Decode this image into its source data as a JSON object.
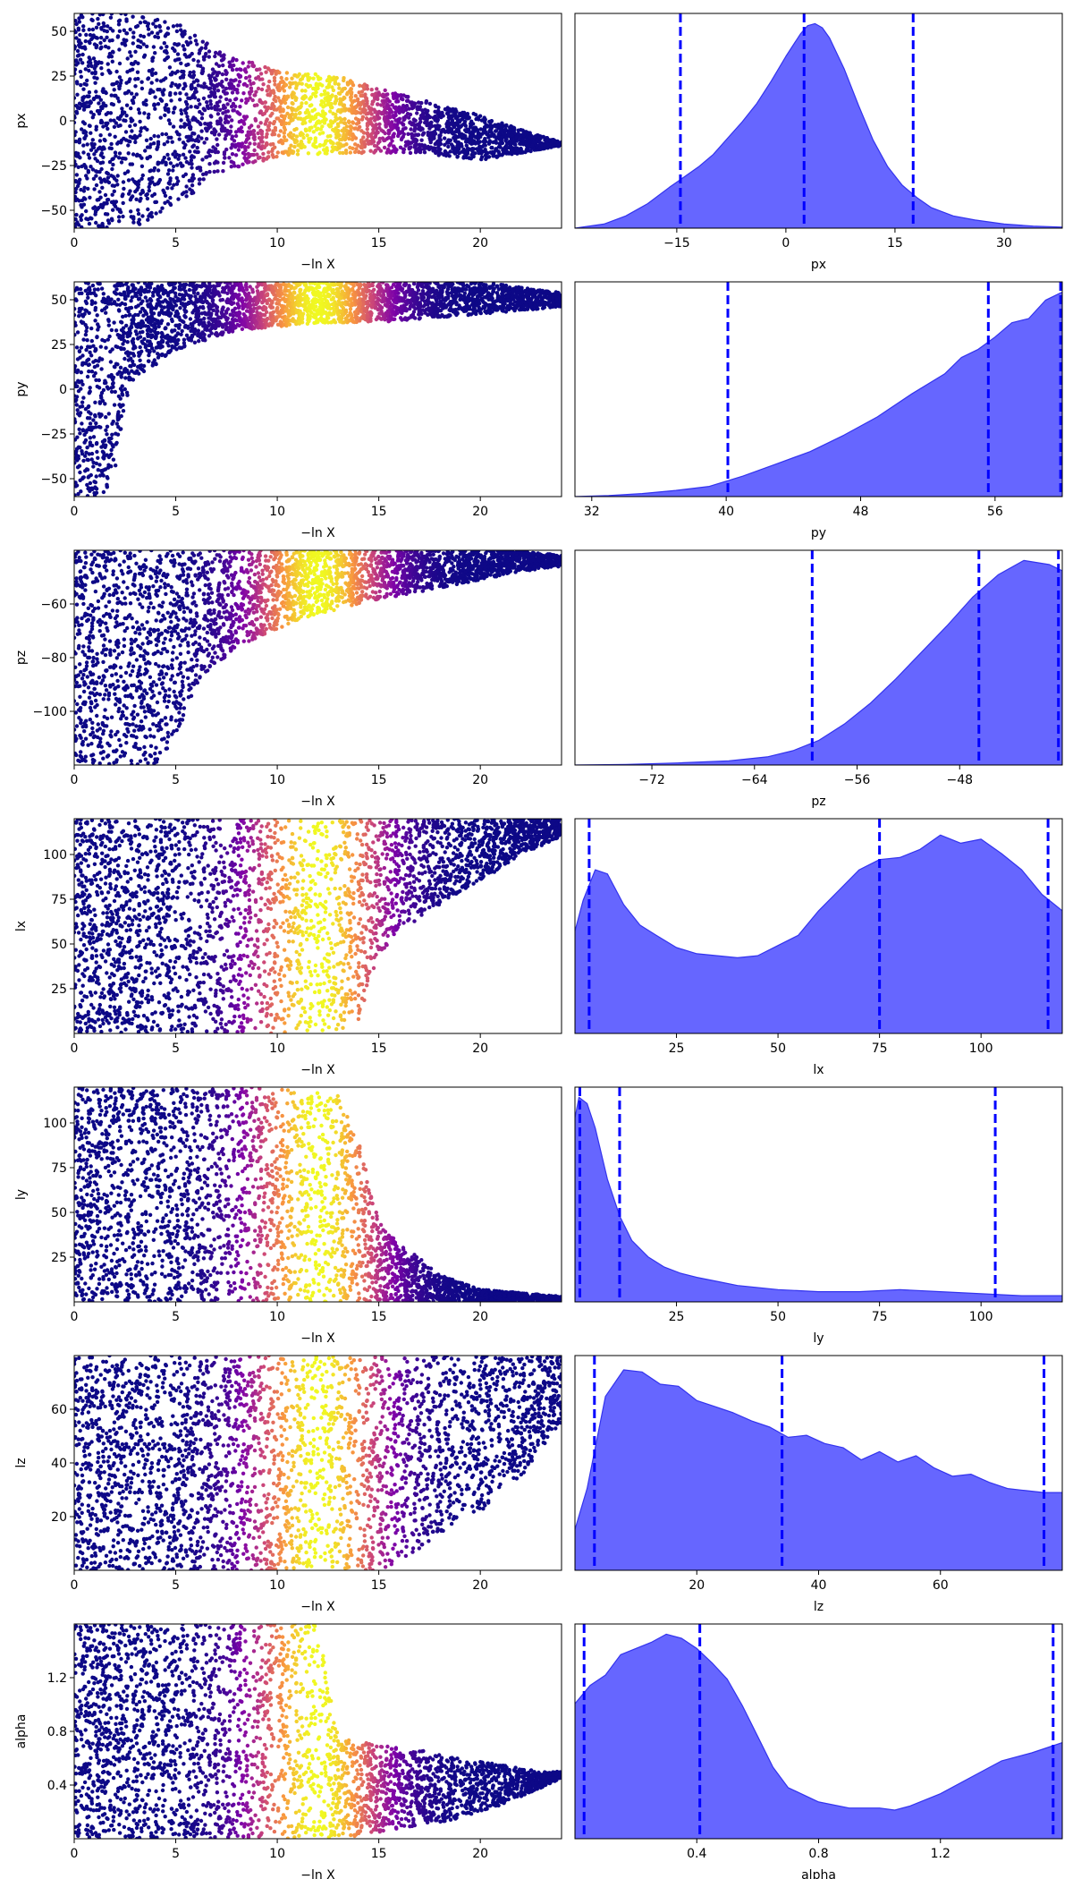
{
  "colors": {
    "kde_fill": "#6666ff",
    "kde_edge": "#3333ee",
    "quantile_line": "#0000ff",
    "scatter_low": "#0d0887",
    "scatter_high": "#f0f921"
  },
  "chart_data": [
    {
      "type": "scatter",
      "param": "px",
      "xlabel": "−ln X",
      "ylabel": "px",
      "xlim": [
        0,
        24
      ],
      "ylim": [
        -60,
        60
      ],
      "xticks": [
        0,
        5,
        10,
        15,
        20
      ],
      "yticks": [
        -50,
        -25,
        0,
        25,
        50
      ],
      "colormap": "plasma",
      "peak_x": 12,
      "envelope": [
        [
          0,
          -60,
          60
        ],
        [
          3,
          -60,
          60
        ],
        [
          5,
          -48,
          55
        ],
        [
          7,
          -30,
          40
        ],
        [
          10,
          -20,
          28
        ],
        [
          13,
          -18,
          25
        ],
        [
          17,
          -18,
          12
        ],
        [
          20,
          -22,
          3
        ],
        [
          22,
          -18,
          -5
        ],
        [
          24,
          -14,
          -12
        ]
      ]
    },
    {
      "type": "area",
      "param": "px",
      "xlabel": "px",
      "xlim": [
        -29,
        38
      ],
      "ylim": [
        0,
        1.05
      ],
      "xticks": [
        -15,
        0,
        15,
        30
      ],
      "quantiles": [
        -14.5,
        2.5,
        17.5
      ],
      "density_x": [
        -29,
        -25,
        -22,
        -19,
        -16,
        -14,
        -12,
        -10,
        -8,
        -6,
        -4,
        -2,
        0,
        2,
        3,
        4,
        5,
        6,
        8,
        10,
        12,
        14,
        16,
        18,
        20,
        23,
        26,
        30,
        34,
        38
      ],
      "density_y": [
        0,
        0.02,
        0.06,
        0.12,
        0.2,
        0.25,
        0.3,
        0.36,
        0.44,
        0.52,
        0.61,
        0.72,
        0.84,
        0.95,
        0.99,
        1.0,
        0.98,
        0.93,
        0.78,
        0.6,
        0.43,
        0.3,
        0.21,
        0.15,
        0.1,
        0.06,
        0.04,
        0.02,
        0.01,
        0.005
      ]
    },
    {
      "type": "scatter",
      "param": "py",
      "xlabel": "−ln X",
      "ylabel": "py",
      "xlim": [
        0,
        24
      ],
      "ylim": [
        -60,
        60
      ],
      "xticks": [
        0,
        5,
        10,
        15,
        20
      ],
      "yticks": [
        -50,
        -25,
        0,
        25,
        50
      ],
      "colormap": "plasma",
      "peak_x": 12,
      "envelope": [
        [
          0,
          -60,
          60
        ],
        [
          1.5,
          -60,
          60
        ],
        [
          2,
          -45,
          60
        ],
        [
          2.5,
          -10,
          60
        ],
        [
          3,
          5,
          60
        ],
        [
          5,
          22,
          60
        ],
        [
          8,
          33,
          60
        ],
        [
          12,
          37,
          60
        ],
        [
          16,
          38,
          60
        ],
        [
          20,
          42,
          60
        ],
        [
          22,
          44,
          57
        ],
        [
          24,
          46,
          54
        ]
      ]
    },
    {
      "type": "area",
      "param": "py",
      "xlabel": "py",
      "xlim": [
        31,
        60
      ],
      "ylim": [
        0,
        1.05
      ],
      "xticks": [
        32,
        40,
        48,
        56
      ],
      "quantiles": [
        40.1,
        55.6,
        59.9
      ],
      "density_x": [
        31,
        33,
        35,
        37,
        39,
        41,
        43,
        45,
        47,
        49,
        51,
        53,
        54,
        55,
        56,
        57,
        58,
        59,
        60
      ],
      "density_y": [
        0,
        0.005,
        0.015,
        0.03,
        0.05,
        0.1,
        0.16,
        0.22,
        0.3,
        0.39,
        0.5,
        0.6,
        0.68,
        0.72,
        0.78,
        0.85,
        0.87,
        0.96,
        1.0
      ]
    },
    {
      "type": "scatter",
      "param": "pz",
      "xlabel": "−ln X",
      "ylabel": "pz",
      "xlim": [
        0,
        24
      ],
      "ylim": [
        -120,
        -40
      ],
      "xticks": [
        0,
        5,
        10,
        15,
        20
      ],
      "yticks": [
        -100,
        -80,
        -60
      ],
      "colormap": "plasma",
      "peak_x": 12,
      "envelope": [
        [
          0,
          -120,
          -40
        ],
        [
          4,
          -120,
          -40
        ],
        [
          5,
          -110,
          -40
        ],
        [
          6,
          -90,
          -40
        ],
        [
          8,
          -76,
          -40
        ],
        [
          11,
          -66,
          -40
        ],
        [
          14,
          -60,
          -40
        ],
        [
          18,
          -54,
          -40
        ],
        [
          22,
          -48,
          -40
        ],
        [
          24,
          -46,
          -42
        ]
      ]
    },
    {
      "type": "area",
      "param": "pz",
      "xlabel": "pz",
      "xlim": [
        -78,
        -40
      ],
      "ylim": [
        0,
        1.05
      ],
      "xticks": [
        -72,
        -64,
        -56,
        -48
      ],
      "quantiles": [
        -59.5,
        -46.5,
        -40.3
      ],
      "density_x": [
        -78,
        -74,
        -70,
        -66,
        -63,
        -61,
        -59,
        -57,
        -55,
        -53,
        -51,
        -49,
        -47,
        -45,
        -43,
        -41,
        -40
      ],
      "density_y": [
        0,
        0.003,
        0.01,
        0.02,
        0.04,
        0.07,
        0.12,
        0.2,
        0.3,
        0.42,
        0.55,
        0.68,
        0.82,
        0.93,
        1.0,
        0.98,
        0.95
      ]
    },
    {
      "type": "scatter",
      "param": "lx",
      "xlabel": "−ln X",
      "ylabel": "lx",
      "xlim": [
        0,
        24
      ],
      "ylim": [
        0,
        120
      ],
      "xticks": [
        0,
        5,
        10,
        15,
        20
      ],
      "yticks": [
        25,
        50,
        75,
        100
      ],
      "colormap": "plasma",
      "peak_x": 12,
      "envelope": [
        [
          0,
          0,
          120
        ],
        [
          10,
          0,
          120
        ],
        [
          12,
          0,
          120
        ],
        [
          14,
          5,
          120
        ],
        [
          15,
          45,
          120
        ],
        [
          17,
          65,
          120
        ],
        [
          20,
          85,
          120
        ],
        [
          22,
          100,
          120
        ],
        [
          24,
          110,
          120
        ]
      ]
    },
    {
      "type": "area",
      "param": "lx",
      "xlabel": "lx",
      "xlim": [
        0,
        120
      ],
      "ylim": [
        0,
        1.05
      ],
      "xticks": [
        25,
        50,
        75,
        100
      ],
      "quantiles": [
        3.5,
        75,
        116.5
      ],
      "density_x": [
        0,
        2,
        5,
        8,
        12,
        16,
        20,
        25,
        30,
        35,
        40,
        45,
        50,
        55,
        60,
        65,
        70,
        75,
        80,
        85,
        90,
        95,
        100,
        105,
        110,
        115,
        120
      ],
      "density_y": [
        0.5,
        0.65,
        0.8,
        0.78,
        0.63,
        0.53,
        0.48,
        0.42,
        0.39,
        0.38,
        0.37,
        0.38,
        0.43,
        0.48,
        0.6,
        0.7,
        0.8,
        0.85,
        0.86,
        0.9,
        0.97,
        0.93,
        0.95,
        0.88,
        0.8,
        0.68,
        0.6
      ]
    },
    {
      "type": "scatter",
      "param": "ly",
      "xlabel": "−ln X",
      "ylabel": "ly",
      "xlim": [
        0,
        24
      ],
      "ylim": [
        0,
        120
      ],
      "xticks": [
        0,
        5,
        10,
        15,
        20
      ],
      "yticks": [
        25,
        50,
        75,
        100
      ],
      "colormap": "plasma",
      "peak_x": 12,
      "envelope": [
        [
          0,
          0,
          120
        ],
        [
          10,
          0,
          120
        ],
        [
          13,
          0,
          115
        ],
        [
          14,
          0,
          90
        ],
        [
          15,
          0,
          45
        ],
        [
          16,
          0,
          32
        ],
        [
          17,
          0,
          25
        ],
        [
          18,
          0,
          15
        ],
        [
          20,
          0,
          7
        ],
        [
          24,
          0,
          3
        ]
      ]
    },
    {
      "type": "area",
      "param": "ly",
      "xlabel": "ly",
      "xlim": [
        0,
        120
      ],
      "ylim": [
        0,
        1.05
      ],
      "xticks": [
        25,
        50,
        75,
        100
      ],
      "quantiles": [
        1.2,
        11,
        103.5
      ],
      "density_x": [
        0,
        1,
        3,
        5,
        8,
        11,
        14,
        18,
        22,
        26,
        30,
        35,
        40,
        50,
        60,
        70,
        80,
        90,
        100,
        110,
        120
      ],
      "density_y": [
        0.9,
        1.0,
        0.97,
        0.85,
        0.6,
        0.42,
        0.3,
        0.22,
        0.17,
        0.14,
        0.12,
        0.1,
        0.08,
        0.06,
        0.05,
        0.05,
        0.06,
        0.05,
        0.04,
        0.03,
        0.03
      ]
    },
    {
      "type": "scatter",
      "param": "lz",
      "xlabel": "−ln X",
      "ylabel": "lz",
      "xlim": [
        0,
        24
      ],
      "ylim": [
        0,
        80
      ],
      "xticks": [
        0,
        5,
        10,
        15,
        20
      ],
      "yticks": [
        20,
        40,
        60
      ],
      "colormap": "plasma",
      "peak_x": 12,
      "envelope": [
        [
          0,
          0,
          80
        ],
        [
          15,
          0,
          80
        ],
        [
          16,
          3,
          80
        ],
        [
          17,
          8,
          80
        ],
        [
          18,
          14,
          80
        ],
        [
          20,
          22,
          80
        ],
        [
          22,
          35,
          80
        ],
        [
          24,
          55,
          80
        ]
      ]
    },
    {
      "type": "area",
      "param": "lz",
      "xlabel": "lz",
      "xlim": [
        0,
        80
      ],
      "ylim": [
        0,
        1.05
      ],
      "xticks": [
        20,
        40,
        60
      ],
      "quantiles": [
        3.2,
        34,
        77
      ],
      "density_x": [
        0,
        2,
        5,
        8,
        11,
        14,
        17,
        20,
        23,
        26,
        29,
        32,
        35,
        38,
        41,
        44,
        47,
        50,
        53,
        56,
        59,
        62,
        65,
        68,
        71,
        74,
        77,
        80
      ],
      "density_y": [
        0.2,
        0.4,
        0.85,
        0.98,
        0.97,
        0.91,
        0.9,
        0.83,
        0.8,
        0.77,
        0.73,
        0.7,
        0.65,
        0.66,
        0.62,
        0.6,
        0.54,
        0.58,
        0.53,
        0.56,
        0.5,
        0.46,
        0.47,
        0.43,
        0.4,
        0.39,
        0.38,
        0.38
      ]
    },
    {
      "type": "scatter",
      "param": "alpha",
      "xlabel": "−ln X",
      "ylabel": "alpha",
      "xlim": [
        0,
        24
      ],
      "ylim": [
        0,
        1.6
      ],
      "xticks": [
        0,
        5,
        10,
        15,
        20
      ],
      "yticks": [
        0.4,
        0.8,
        1.2
      ],
      "colormap": "plasma",
      "peak_x": 12,
      "envelope": [
        [
          0,
          0,
          1.6
        ],
        [
          12,
          0,
          1.6
        ],
        [
          13,
          0,
          0.75
        ],
        [
          15,
          0.05,
          0.7
        ],
        [
          17,
          0.1,
          0.66
        ],
        [
          19,
          0.15,
          0.6
        ],
        [
          21,
          0.25,
          0.55
        ],
        [
          23,
          0.38,
          0.5
        ],
        [
          24,
          0.45,
          0.5
        ]
      ]
    },
    {
      "type": "area",
      "param": "alpha",
      "xlabel": "alpha",
      "xlim": [
        0,
        1.6
      ],
      "ylim": [
        0,
        1.05
      ],
      "xticks": [
        0.4,
        0.8,
        1.2
      ],
      "quantiles": [
        0.03,
        0.41,
        1.57
      ],
      "density_x": [
        0,
        0.05,
        0.1,
        0.15,
        0.2,
        0.25,
        0.3,
        0.35,
        0.4,
        0.45,
        0.5,
        0.55,
        0.6,
        0.65,
        0.7,
        0.8,
        0.9,
        1.0,
        1.05,
        1.1,
        1.2,
        1.3,
        1.4,
        1.5,
        1.6
      ],
      "density_y": [
        0.66,
        0.75,
        0.8,
        0.9,
        0.93,
        0.96,
        1.0,
        0.98,
        0.93,
        0.86,
        0.78,
        0.65,
        0.5,
        0.35,
        0.25,
        0.18,
        0.15,
        0.15,
        0.14,
        0.16,
        0.22,
        0.3,
        0.38,
        0.42,
        0.47
      ]
    }
  ]
}
